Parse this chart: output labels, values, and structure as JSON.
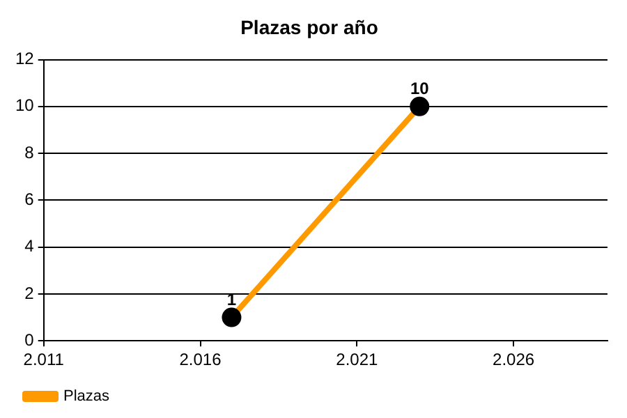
{
  "chart_data": {
    "type": "line",
    "title": "Plazas por año",
    "x": [
      2017,
      2023
    ],
    "series": [
      {
        "name": "Plazas",
        "color": "#ff9900",
        "values": [
          1,
          10
        ]
      }
    ],
    "xlim": [
      2011,
      2029
    ],
    "xticks": [
      {
        "value": 2011,
        "label": "2.011"
      },
      {
        "value": 2016,
        "label": "2.016"
      },
      {
        "value": 2021,
        "label": "2.021"
      },
      {
        "value": 2026,
        "label": "2.026"
      }
    ],
    "ylim": [
      0,
      12
    ],
    "yticks": [
      0,
      2,
      4,
      6,
      8,
      10,
      12
    ],
    "grid": "y",
    "legend": "bottom left",
    "marker": "circle",
    "line_style": "solid",
    "data_labels": true
  }
}
